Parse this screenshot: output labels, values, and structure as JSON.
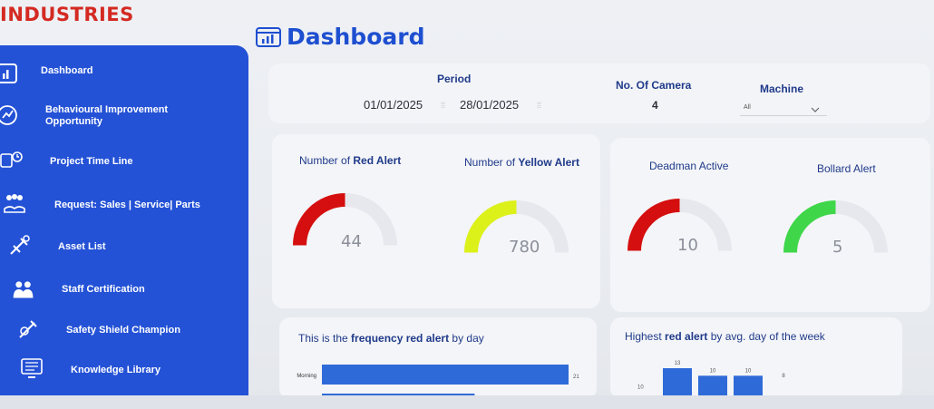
{
  "brand": {
    "name": "INDUSTRIES"
  },
  "page": {
    "title": "Dashboard"
  },
  "sidebar": {
    "items": [
      {
        "label": "Dashboard"
      },
      {
        "label": "Behavioural Improvement",
        "label2": "Opportunity"
      },
      {
        "label": "Project Time Line"
      },
      {
        "label": "Request: Sales | Service| Parts"
      },
      {
        "label": "Asset List"
      },
      {
        "label": "Staff Certification"
      },
      {
        "label": "Safety Shield Champion"
      },
      {
        "label": "Knowledge Library"
      }
    ]
  },
  "filters": {
    "period_label": "Period",
    "start_date": "01/01/2025",
    "end_date": "28/01/2025",
    "camera_label": "No. Of Camera",
    "camera_value": "4",
    "machine_label": "Machine",
    "machine_value": "All"
  },
  "gauges": [
    {
      "title_prefix": "Number of ",
      "title_bold": "Red Alert",
      "title_suffix": "",
      "value": "44",
      "fill": 0.5,
      "color": "#d50f0f"
    },
    {
      "title_prefix": "Number of ",
      "title_bold": "Yellow Alert",
      "title_suffix": "",
      "value": "780",
      "fill": 0.5,
      "color": "#dcf01a"
    },
    {
      "title_prefix": "Deadman Active",
      "title_bold": "",
      "title_suffix": "",
      "value": "10",
      "fill": 0.5,
      "color": "#d50f0f"
    },
    {
      "title_prefix": "Bollard Alert",
      "title_bold": "",
      "title_suffix": "",
      "value": "5",
      "fill": 0.5,
      "color": "#3fd64a"
    }
  ],
  "charts": {
    "left_title_prefix": "This is the ",
    "left_title_bold": "frequency red alert",
    "left_title_suffix": " by day",
    "right_title_prefix": "Highest ",
    "right_title_bold": "red alert",
    "right_title_suffix": " by avg. day of the week"
  },
  "chart_data": [
    {
      "type": "bar",
      "orientation": "horizontal",
      "title": "This is the frequency red alert by day",
      "categories": [
        "Morning",
        ""
      ],
      "values": [
        21,
        13
      ],
      "xlim": [
        0,
        21
      ]
    },
    {
      "type": "bar",
      "title": "Highest red alert by avg. day of the week",
      "categories": [
        "",
        "",
        "",
        ""
      ],
      "values": [
        13,
        10,
        10,
        8
      ],
      "yticks": [
        "10"
      ],
      "ylim": [
        0,
        13
      ]
    }
  ],
  "colors": {
    "accent": "#2452d6",
    "brand": "#d42a22",
    "bar": "#2f6bd8"
  }
}
